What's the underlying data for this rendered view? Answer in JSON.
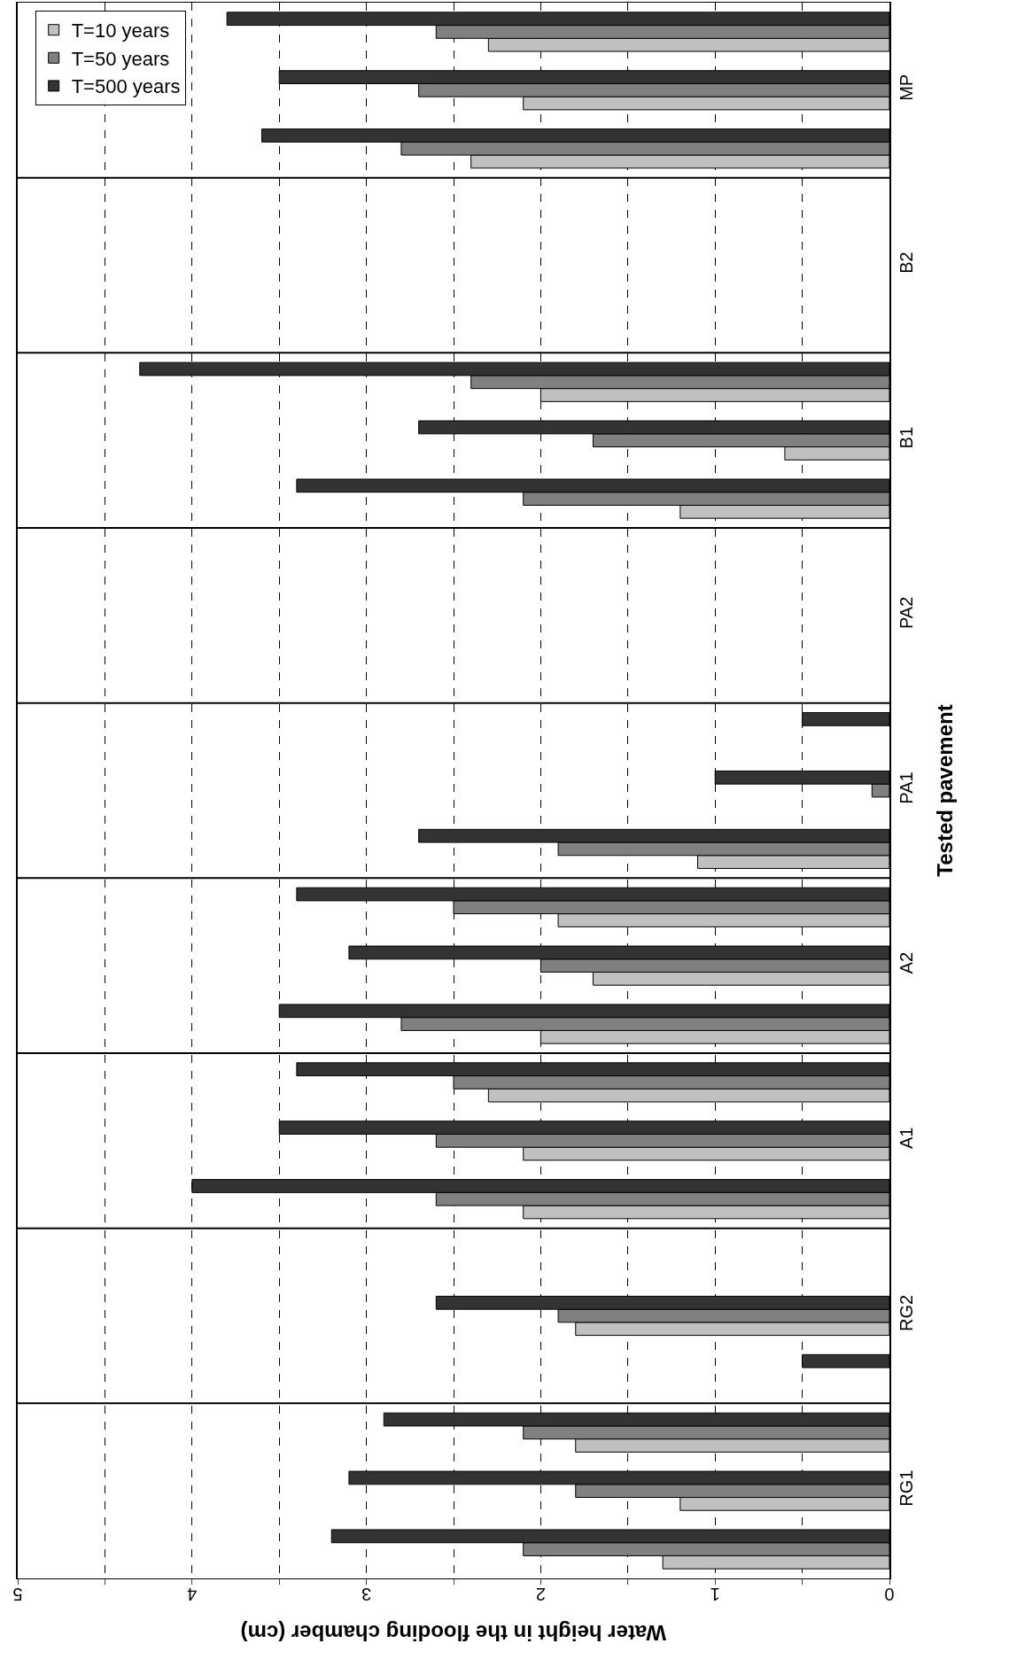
{
  "chart_data": {
    "type": "bar",
    "orientation": "horizontal",
    "xlabel": "Water height in the flooding chamber (cm)",
    "ylabel": "Tested pavement",
    "categories": [
      null,
      "MP",
      null,
      null,
      "B2",
      null,
      null,
      "B1",
      null,
      null,
      "PA2",
      null,
      null,
      "PA1",
      null,
      null,
      "A2",
      null,
      null,
      "A1",
      null,
      null,
      "RG2",
      null,
      null,
      "RG1",
      null
    ],
    "series": [
      {
        "name": "T=10 years",
        "color": "#c0c0c0",
        "values": [
          2.3,
          2.1,
          2.4,
          0,
          0,
          0,
          2.0,
          0.6,
          1.2,
          0,
          0,
          0,
          0,
          0,
          1.1,
          1.9,
          1.7,
          2.0,
          2.3,
          2.1,
          2.1,
          0,
          1.8,
          0,
          1.8,
          1.2,
          1.3
        ]
      },
      {
        "name": "T=50 years",
        "color": "#808080",
        "values": [
          2.6,
          2.7,
          2.8,
          0,
          0,
          0,
          2.4,
          1.7,
          2.1,
          0,
          0,
          0,
          0,
          0.1,
          1.9,
          2.5,
          2.0,
          2.8,
          2.5,
          2.6,
          2.6,
          0,
          1.9,
          0,
          2.1,
          1.8,
          2.1
        ]
      },
      {
        "name": "T=500 years",
        "color": "#333333",
        "values": [
          3.8,
          3.5,
          3.6,
          0,
          0,
          0,
          4.3,
          2.7,
          3.4,
          0,
          0,
          0,
          0.5,
          1.0,
          2.7,
          3.4,
          3.1,
          3.5,
          3.4,
          3.5,
          4.0,
          0,
          2.6,
          0.5,
          2.9,
          3.1,
          3.2
        ]
      }
    ],
    "xlim": [
      5,
      0
    ],
    "xticks": [
      0,
      {
        "value": 0.5,
        "label": null
      },
      1,
      {
        "value": 1.5,
        "label": null
      },
      2,
      {
        "value": 2.5,
        "label": null
      },
      3,
      {
        "value": 3.5,
        "label": null
      },
      4,
      {
        "value": 4.5,
        "label": null
      },
      5
    ],
    "grid": true,
    "legend": "top left"
  }
}
